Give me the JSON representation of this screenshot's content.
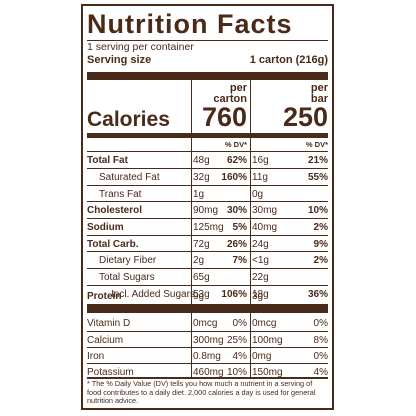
{
  "label": {
    "title": "Nutrition Facts",
    "servings": "1 serving per container",
    "serving_size_label": "Serving size",
    "serving_size_value": "1 carton (216g)",
    "col1_header": [
      "per",
      "carton"
    ],
    "col2_header": [
      "per",
      "bar"
    ],
    "calories_label": "Calories",
    "calories_col1": "760",
    "calories_col2": "250",
    "dv_header": "% DV*",
    "rows": [
      {
        "name": "Total Fat",
        "a1": "48g",
        "p1": "62%",
        "a2": "16g",
        "p2": "21%"
      },
      {
        "name": "Saturated Fat",
        "a1": "32g",
        "p1": "160%",
        "a2": "11g",
        "p2": "55%"
      },
      {
        "name": "Trans Fat",
        "a1": "1g",
        "p1": "",
        "a2": "0g",
        "p2": ""
      },
      {
        "name": "Cholesterol",
        "a1": "90mg",
        "p1": "30%",
        "a2": "30mg",
        "p2": "10%"
      },
      {
        "name": "Sodium",
        "a1": "125mg",
        "p1": "5%",
        "a2": "40mg",
        "p2": "2%"
      },
      {
        "name": "Total Carb.",
        "a1": "72g",
        "p1": "26%",
        "a2": "24g",
        "p2": "9%"
      },
      {
        "name": "Dietary Fiber",
        "a1": "2g",
        "p1": "7%",
        "a2": "<1g",
        "p2": "2%"
      },
      {
        "name": "Total Sugars",
        "a1": "65g",
        "p1": "",
        "a2": "22g",
        "p2": ""
      },
      {
        "name": "Incl. Added Sugars",
        "a1": "53g",
        "p1": "106%",
        "a2": "18g",
        "p2": "36%"
      },
      {
        "name": "Protein",
        "a1": "9g",
        "p1": "",
        "a2": "3g",
        "p2": ""
      },
      {
        "name": "Vitamin D",
        "a1": "0mcg",
        "p1": "0%",
        "a2": "0mcg",
        "p2": "0%"
      },
      {
        "name": "Calcium",
        "a1": "300mg",
        "p1": "25%",
        "a2": "100mg",
        "p2": "8%"
      },
      {
        "name": "Iron",
        "a1": "0.8mg",
        "p1": "4%",
        "a2": "0mg",
        "p2": "0%"
      },
      {
        "name": "Potassium",
        "a1": "460mg",
        "p1": "10%",
        "a2": "150mg",
        "p2": "4%"
      }
    ],
    "footnote": "* The % Daily Value (DV) tells you how much a nutrient in a serving of food contributes to a daily diet. 2,000 calories a day is used for general nutrition advice."
  }
}
